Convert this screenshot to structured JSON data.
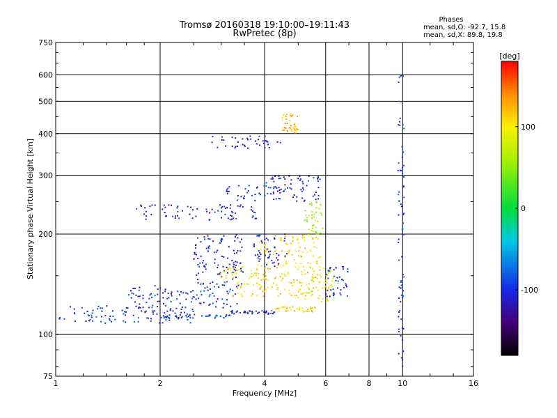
{
  "chart_data": {
    "type": "scatter",
    "title": "Tromsø 20160318 19:10:00–19:11:43",
    "subtitle": "RwPretec (8p)",
    "xlabel": "Frequency [MHz]",
    "ylabel": "Stationary phase Virtual Height [km]",
    "x_scale": "log",
    "y_scale": "log",
    "xlim": [
      1,
      16
    ],
    "ylim": [
      75,
      750
    ],
    "x_ticks": [
      1,
      2,
      4,
      6,
      8,
      10,
      16
    ],
    "y_ticks": [
      75,
      100,
      200,
      300,
      400,
      500,
      600,
      750
    ],
    "grid": true,
    "colorbar": {
      "label": "[deg]",
      "ticks": [
        -100,
        0,
        100
      ],
      "range": [
        -180,
        180
      ]
    },
    "phases_box": {
      "title": "Phases",
      "line1": "mean, sd,O: -92.7, 15.8",
      "line2": "mean, sd,X:  89.8, 19.8"
    },
    "clusters": [
      {
        "x_from": 1.02,
        "x_to": 2.5,
        "y_from": 108,
        "y_to": 122,
        "phase": -100
      },
      {
        "x_from": 2.0,
        "x_to": 3.2,
        "y_from": 112,
        "y_to": 115,
        "phase": -95
      },
      {
        "x_from": 3.2,
        "x_to": 4.3,
        "y_from": 115,
        "y_to": 118,
        "phase": -105
      },
      {
        "x_from": 4.2,
        "x_to": 5.6,
        "y_from": 117,
        "y_to": 121,
        "phase": 110
      },
      {
        "x_from": 1.6,
        "x_to": 3.4,
        "y_from": 120,
        "y_to": 140,
        "phase": -100
      },
      {
        "x_from": 2.5,
        "x_to": 3.5,
        "y_from": 140,
        "y_to": 200,
        "phase": -110
      },
      {
        "x_from": 3.0,
        "x_to": 4.0,
        "y_from": 130,
        "y_to": 160,
        "phase": 100
      },
      {
        "x_from": 3.8,
        "x_to": 5.8,
        "y_from": 130,
        "y_to": 200,
        "phase": 110
      },
      {
        "x_from": 5.0,
        "x_to": 6.5,
        "y_from": 125,
        "y_to": 160,
        "phase": 85
      },
      {
        "x_from": 6.0,
        "x_to": 7.0,
        "y_from": 130,
        "y_to": 160,
        "phase": -105
      },
      {
        "x_from": 1.7,
        "x_to": 3.8,
        "y_from": 220,
        "y_to": 245,
        "phase": -110
      },
      {
        "x_from": 3.0,
        "x_to": 4.5,
        "y_from": 250,
        "y_to": 280,
        "phase": -100
      },
      {
        "x_from": 4.0,
        "x_to": 5.8,
        "y_from": 250,
        "y_to": 300,
        "phase": -105
      },
      {
        "x_from": 5.2,
        "x_to": 5.9,
        "y_from": 200,
        "y_to": 250,
        "phase": 60
      },
      {
        "x_from": 2.8,
        "x_to": 4.5,
        "y_from": 360,
        "y_to": 395,
        "phase": -110
      },
      {
        "x_from": 4.5,
        "x_to": 5.0,
        "y_from": 400,
        "y_to": 460,
        "phase": 120
      },
      {
        "x_from": 3.7,
        "x_to": 4.7,
        "y_from": 160,
        "y_to": 200,
        "phase": -110
      },
      {
        "x_from": 9.7,
        "x_to": 10.1,
        "y_from": 80,
        "y_to": 600,
        "phase": -100
      }
    ]
  }
}
